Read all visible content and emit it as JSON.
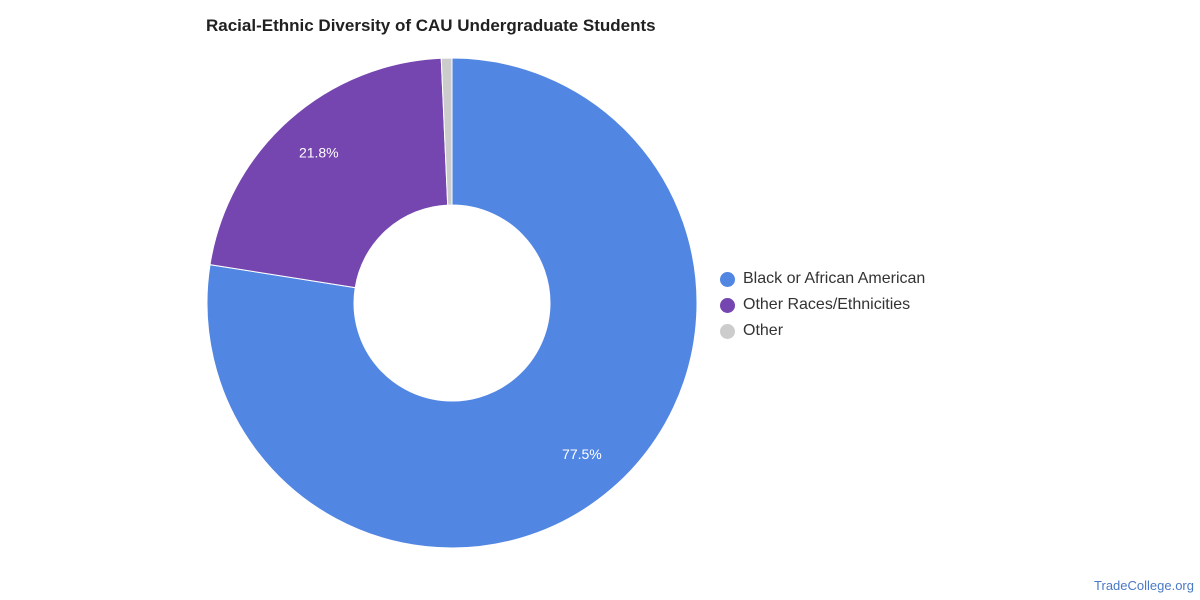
{
  "chart_data": {
    "type": "pie",
    "title": "Racial-Ethnic Diversity of CAU Undergraduate Students",
    "legend_position": "right",
    "slices": [
      {
        "label": "Black or African American",
        "value": 77.5,
        "value_label": "77.5%",
        "color": "#5286e3"
      },
      {
        "label": "Other Races/Ethnicities",
        "value": 21.8,
        "value_label": "21.8%",
        "color": "#7546b0"
      },
      {
        "label": "Other",
        "value": 0.7,
        "value_label": "",
        "color": "#cccccc"
      }
    ]
  },
  "footer": {
    "source": "TradeCollege.org"
  }
}
